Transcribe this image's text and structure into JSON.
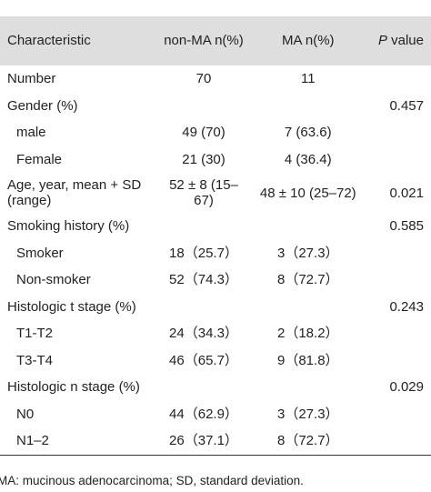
{
  "table": {
    "header": [
      "Characteristic",
      "non-MA n(%)",
      "MA n(%)",
      "P value"
    ],
    "groups": [
      {
        "cells": [
          "Number",
          "70",
          "11",
          null
        ],
        "items": []
      },
      {
        "cells": [
          "Gender (%)",
          null,
          null,
          "0.457"
        ],
        "items": [
          [
            "male",
            "49 (70)",
            "7 (63.6)",
            null
          ],
          [
            "Female",
            "21 (30)",
            "4 (36.4)",
            null
          ]
        ]
      },
      {
        "cells": [
          "Age, year, mean + SD (range)",
          "52 ± 8 (15–67)",
          "48 ± 10 (25–72)",
          "0.021"
        ],
        "items": []
      },
      {
        "cells": [
          "Smoking history (%)",
          null,
          null,
          "0.585"
        ],
        "items": [
          [
            "Smoker",
            "18（25.7）",
            "3（27.3）",
            null
          ],
          [
            "Non-smoker",
            "52（74.3）",
            "8（72.7）",
            null
          ]
        ]
      },
      {
        "cells": [
          "Histologic t stage (%)",
          null,
          null,
          "0.243"
        ],
        "items": [
          [
            "T1-T2",
            "24（34.3）",
            "2（18.2）",
            null
          ],
          [
            "T3-T4",
            "46（65.7）",
            "9（81.8）",
            null
          ]
        ]
      },
      {
        "cells": [
          "Histologic n stage (%)",
          null,
          null,
          "0.029"
        ],
        "items": [
          [
            "N0",
            "44（62.9）",
            "3（27.3）",
            null
          ],
          [
            "N1–2",
            "26（37.1）",
            "8（72.7）",
            null
          ]
        ]
      }
    ],
    "note": "MA: mucinous adenocarcinoma; SD, standard deviation."
  }
}
